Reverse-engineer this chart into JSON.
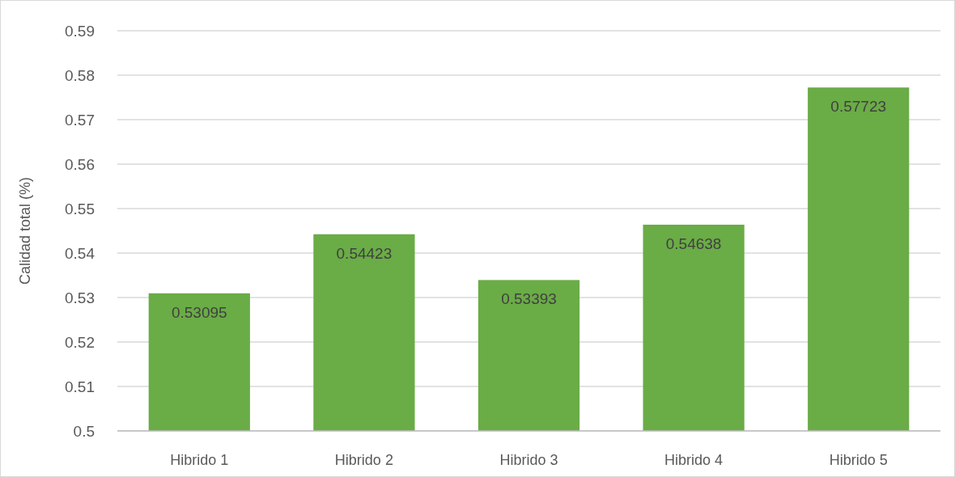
{
  "chart_data": {
    "type": "bar",
    "ylabel": "Calidad total (%)",
    "categories": [
      "Hibrido 1",
      "Hibrido 2",
      "Hibrido 3",
      "Hibrido 4",
      "Hibrido 5"
    ],
    "values": [
      0.53095,
      0.54423,
      0.53393,
      0.54638,
      0.57723
    ],
    "color": "#6aac46",
    "ylim": [
      0.5,
      0.59
    ],
    "yticks": [
      0.5,
      0.51,
      0.52,
      0.53,
      0.54,
      0.55,
      0.56,
      0.57,
      0.58,
      0.59
    ],
    "grid": "y",
    "data_labels": true
  }
}
